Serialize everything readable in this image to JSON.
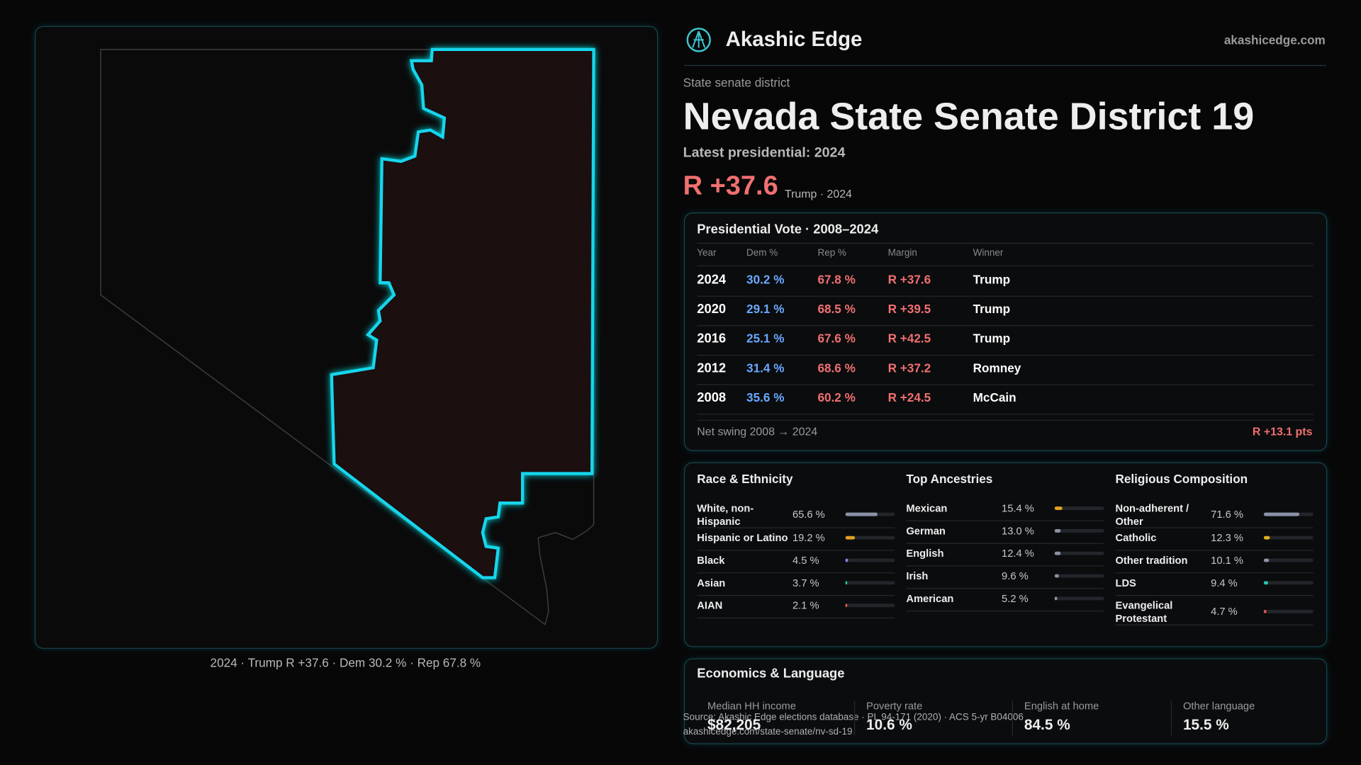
{
  "header": {
    "brand": "Akashic Edge",
    "site": "akashicedge.com"
  },
  "district": {
    "kicker": "State senate district",
    "title": "Nevada State Senate District 19",
    "latest": "Latest presidential: 2024",
    "margin": "R +37.6",
    "note": "Trump · 2024"
  },
  "map": {
    "caption": "2024 · Trump R +37.6 · Dem 30.2 % · Rep 67.8 %"
  },
  "presidential": {
    "title": "Presidential Vote · 2008–2024",
    "columns": [
      "Year",
      "Dem %",
      "Rep %",
      "Margin",
      "Winner"
    ],
    "rows": [
      [
        "2024",
        "30.2 %",
        "67.8 %",
        "R +37.6",
        "Trump"
      ],
      [
        "2020",
        "29.1 %",
        "68.5 %",
        "R +39.5",
        "Trump"
      ],
      [
        "2016",
        "25.1 %",
        "67.6 %",
        "R +42.5",
        "Trump"
      ],
      [
        "2012",
        "31.4 %",
        "68.6 %",
        "R +37.2",
        "Romney"
      ],
      [
        "2008",
        "35.6 %",
        "60.2 %",
        "R +24.5",
        "McCain"
      ]
    ],
    "swing_label": "Net swing 2008 → 2024",
    "swing_value": "R +13.1 pts"
  },
  "demographics": [
    {
      "title": "Race & Ethnicity",
      "rows": [
        {
          "label": "White, non-Hispanic",
          "value": 65.6,
          "value_label": "65.6 %",
          "color": "#8a93a6"
        },
        {
          "label": "Hispanic or Latino",
          "value": 19.2,
          "value_label": "19.2 %",
          "color": "#e0a020"
        },
        {
          "label": "Black",
          "value": 4.5,
          "value_label": "4.5 %",
          "color": "#8f7ee8"
        },
        {
          "label": "Asian",
          "value": 3.7,
          "value_label": "3.7 %",
          "color": "#2bc4a8"
        },
        {
          "label": "AIAN",
          "value": 2.1,
          "value_label": "2.1 %",
          "color": "#e06040"
        }
      ]
    },
    {
      "title": "Top Ancestries",
      "rows": [
        {
          "label": "Mexican",
          "value": 15.4,
          "value_label": "15.4 %",
          "color": "#e0a020"
        },
        {
          "label": "German",
          "value": 13.0,
          "value_label": "13.0 %",
          "color": "#8a93a6"
        },
        {
          "label": "English",
          "value": 12.4,
          "value_label": "12.4 %",
          "color": "#8a93a6"
        },
        {
          "label": "Irish",
          "value": 9.6,
          "value_label": "9.6 %",
          "color": "#8a93a6"
        },
        {
          "label": "American",
          "value": 5.2,
          "value_label": "5.2 %",
          "color": "#8a93a6"
        }
      ]
    },
    {
      "title": "Religious Composition",
      "rows": [
        {
          "label": "Non-adherent / Other",
          "value": 71.6,
          "value_label": "71.6 %",
          "color": "#8a93a6"
        },
        {
          "label": "Catholic",
          "value": 12.3,
          "value_label": "12.3 %",
          "color": "#e0b020"
        },
        {
          "label": "Other tradition",
          "value": 10.1,
          "value_label": "10.1 %",
          "color": "#8a93a6"
        },
        {
          "label": "LDS",
          "value": 9.4,
          "value_label": "9.4 %",
          "color": "#2bc4b0"
        },
        {
          "label": "Evangelical Protestant",
          "value": 4.7,
          "value_label": "4.7 %",
          "color": "#e05050"
        }
      ]
    }
  ],
  "economics": {
    "title": "Economics & Language",
    "stats": [
      {
        "label": "Median HH income",
        "value": "$82,205"
      },
      {
        "label": "Poverty rate",
        "value": "10.6 %"
      },
      {
        "label": "English at home",
        "value": "84.5 %"
      },
      {
        "label": "Other language",
        "value": "15.5 %"
      }
    ]
  },
  "footer": {
    "source": "Source: Akashic Edge elections database · PL 94-171 (2020) · ACS 5-yr B04006",
    "url": "akashicedge.com/state-senate/nv-sd-19"
  }
}
